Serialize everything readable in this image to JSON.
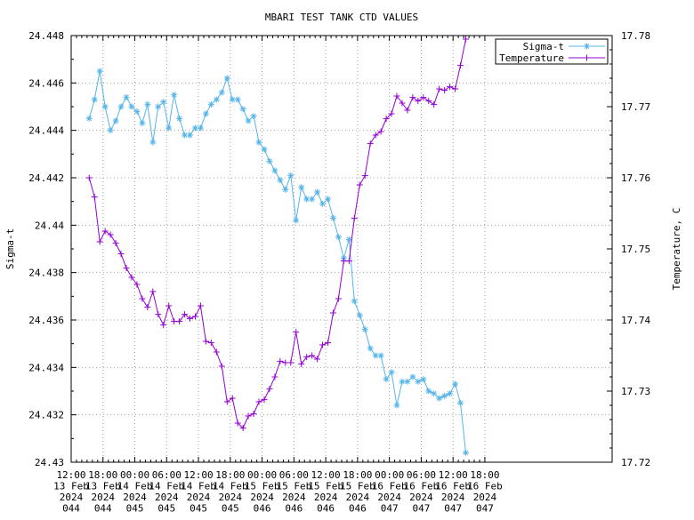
{
  "chart_data": {
    "type": "line",
    "title": "MBARI TEST TANK CTD VALUES",
    "ylabel": "Sigma-t",
    "y2label": "Temperature, C",
    "xlim": [
      0,
      102
    ],
    "ylim": [
      24.43,
      24.448
    ],
    "y2lim": [
      17.72,
      17.78
    ],
    "grid": true,
    "legend_position": "top-right",
    "x_ticks": [
      {
        "x": 0,
        "lines": [
          "12:00",
          "13 Feb",
          "2024",
          "044"
        ]
      },
      {
        "x": 6,
        "lines": [
          "18:00",
          "13 Feb",
          "2024",
          "044"
        ]
      },
      {
        "x": 12,
        "lines": [
          "00:00",
          "14 Feb",
          "2024",
          "045"
        ]
      },
      {
        "x": 18,
        "lines": [
          "06:00",
          "14 Feb",
          "2024",
          "045"
        ]
      },
      {
        "x": 24,
        "lines": [
          "12:00",
          "14 Feb",
          "2024",
          "045"
        ]
      },
      {
        "x": 30,
        "lines": [
          "18:00",
          "14 Feb",
          "2024",
          "045"
        ]
      },
      {
        "x": 36,
        "lines": [
          "00:00",
          "15 Feb",
          "2024",
          "046"
        ]
      },
      {
        "x": 42,
        "lines": [
          "06:00",
          "15 Feb",
          "2024",
          "046"
        ]
      },
      {
        "x": 48,
        "lines": [
          "12:00",
          "15 Feb",
          "2024",
          "046"
        ]
      },
      {
        "x": 54,
        "lines": [
          "18:00",
          "15 Feb",
          "2024",
          "046"
        ]
      },
      {
        "x": 60,
        "lines": [
          "00:00",
          "16 Feb",
          "2024",
          "047"
        ]
      },
      {
        "x": 66,
        "lines": [
          "06:00",
          "16 Feb",
          "2024",
          "047"
        ]
      },
      {
        "x": 72,
        "lines": [
          "12:00",
          "16 Feb",
          "2024",
          "047"
        ]
      },
      {
        "x": 78,
        "lines": [
          "18:00",
          "16 Feb",
          "2024",
          "047"
        ]
      }
    ],
    "y_ticks": [
      "24.43",
      "24.432",
      "24.434",
      "24.436",
      "24.438",
      "24.44",
      "24.442",
      "24.444",
      "24.446",
      "24.448"
    ],
    "y2_ticks": [
      "17.72",
      "17.73",
      "17.74",
      "17.75",
      "17.76",
      "17.77",
      "17.78"
    ],
    "series": [
      {
        "name": "Sigma-t",
        "axis": "left",
        "color": "#56b4e9",
        "marker": "asterisk",
        "points": [
          [
            3.4,
            24.4445
          ],
          [
            4.4,
            24.4453
          ],
          [
            5.4,
            24.4465
          ],
          [
            6.4,
            24.445
          ],
          [
            7.4,
            24.444
          ],
          [
            8.4,
            24.4444
          ],
          [
            9.4,
            24.445
          ],
          [
            10.4,
            24.4454
          ],
          [
            11.4,
            24.445
          ],
          [
            12.4,
            24.4448
          ],
          [
            13.4,
            24.4443
          ],
          [
            14.4,
            24.4451
          ],
          [
            15.4,
            24.4435
          ],
          [
            16.4,
            24.445
          ],
          [
            17.4,
            24.4452
          ],
          [
            18.4,
            24.4441
          ],
          [
            19.4,
            24.4455
          ],
          [
            20.4,
            24.4445
          ],
          [
            21.4,
            24.4438
          ],
          [
            22.4,
            24.4438
          ],
          [
            23.4,
            24.4441
          ],
          [
            24.4,
            24.4441
          ],
          [
            25.4,
            24.4447
          ],
          [
            26.4,
            24.4451
          ],
          [
            27.4,
            24.4453
          ],
          [
            28.4,
            24.4456
          ],
          [
            29.4,
            24.4462
          ],
          [
            30.4,
            24.4453
          ],
          [
            31.4,
            24.4453
          ],
          [
            32.4,
            24.4449
          ],
          [
            33.4,
            24.4444
          ],
          [
            34.4,
            24.4446
          ],
          [
            35.4,
            24.4435
          ],
          [
            36.4,
            24.4432
          ],
          [
            37.4,
            24.4427
          ],
          [
            38.4,
            24.4423
          ],
          [
            39.4,
            24.4419
          ],
          [
            40.4,
            24.4415
          ],
          [
            41.4,
            24.4421
          ],
          [
            42.4,
            24.4402
          ],
          [
            43.4,
            24.4416
          ],
          [
            44.4,
            24.4411
          ],
          [
            45.4,
            24.4411
          ],
          [
            46.4,
            24.4414
          ],
          [
            47.4,
            24.4409
          ],
          [
            48.4,
            24.4411
          ],
          [
            49.4,
            24.4403
          ],
          [
            50.4,
            24.4395
          ],
          [
            51.4,
            24.4386
          ],
          [
            52.4,
            24.4394
          ],
          [
            53.4,
            24.4368
          ],
          [
            54.4,
            24.4362
          ],
          [
            55.4,
            24.4356
          ],
          [
            56.4,
            24.4348
          ],
          [
            57.4,
            24.4345
          ],
          [
            58.4,
            24.4345
          ],
          [
            59.4,
            24.4335
          ],
          [
            60.4,
            24.4338
          ],
          [
            61.4,
            24.4324
          ],
          [
            62.4,
            24.4334
          ],
          [
            63.4,
            24.4334
          ],
          [
            64.4,
            24.4336
          ],
          [
            65.4,
            24.4334
          ],
          [
            66.4,
            24.4335
          ],
          [
            67.4,
            24.433
          ],
          [
            68.4,
            24.4329
          ],
          [
            69.4,
            24.4327
          ],
          [
            70.4,
            24.4328
          ],
          [
            71.4,
            24.4329
          ],
          [
            72.4,
            24.4333
          ],
          [
            73.4,
            24.4325
          ],
          [
            74.4,
            24.4304
          ]
        ]
      },
      {
        "name": "Temperature",
        "axis": "right",
        "color": "#9400d3",
        "marker": "plus",
        "points": [
          [
            3.4,
            17.76
          ],
          [
            4.4,
            17.7573
          ],
          [
            5.4,
            17.751
          ],
          [
            6.4,
            17.7525
          ],
          [
            7.4,
            17.752
          ],
          [
            8.4,
            17.7508
          ],
          [
            9.4,
            17.7493
          ],
          [
            10.4,
            17.7473
          ],
          [
            11.4,
            17.746
          ],
          [
            12.4,
            17.745
          ],
          [
            13.4,
            17.743
          ],
          [
            14.4,
            17.7418
          ],
          [
            15.4,
            17.744
          ],
          [
            16.4,
            17.7408
          ],
          [
            17.4,
            17.7393
          ],
          [
            18.4,
            17.742
          ],
          [
            19.4,
            17.7398
          ],
          [
            20.4,
            17.7398
          ],
          [
            21.4,
            17.7408
          ],
          [
            22.4,
            17.7402
          ],
          [
            23.4,
            17.7405
          ],
          [
            24.4,
            17.742
          ],
          [
            25.4,
            17.737
          ],
          [
            26.4,
            17.7368
          ],
          [
            27.4,
            17.7355
          ],
          [
            28.4,
            17.7335
          ],
          [
            29.4,
            17.7285
          ],
          [
            30.4,
            17.729
          ],
          [
            31.4,
            17.7255
          ],
          [
            32.4,
            17.7248
          ],
          [
            33.4,
            17.7265
          ],
          [
            34.4,
            17.7268
          ],
          [
            35.4,
            17.7285
          ],
          [
            36.4,
            17.7288
          ],
          [
            37.4,
            17.7303
          ],
          [
            38.4,
            17.732
          ],
          [
            39.4,
            17.7342
          ],
          [
            40.4,
            17.734
          ],
          [
            41.4,
            17.734
          ],
          [
            42.4,
            17.7383
          ],
          [
            43.4,
            17.7338
          ],
          [
            44.4,
            17.7348
          ],
          [
            45.4,
            17.735
          ],
          [
            46.4,
            17.7345
          ],
          [
            47.4,
            17.7365
          ],
          [
            48.4,
            17.7368
          ],
          [
            49.4,
            17.741
          ],
          [
            50.4,
            17.743
          ],
          [
            51.4,
            17.7483
          ],
          [
            52.4,
            17.7483
          ],
          [
            53.4,
            17.7543
          ],
          [
            54.4,
            17.759
          ],
          [
            55.4,
            17.7603
          ],
          [
            56.4,
            17.7648
          ],
          [
            57.4,
            17.766
          ],
          [
            58.4,
            17.7665
          ],
          [
            59.4,
            17.7683
          ],
          [
            60.4,
            17.769
          ],
          [
            61.4,
            17.7715
          ],
          [
            62.4,
            17.7705
          ],
          [
            63.4,
            17.7695
          ],
          [
            64.4,
            17.7713
          ],
          [
            65.4,
            17.7708
          ],
          [
            66.4,
            17.7713
          ],
          [
            67.4,
            17.7708
          ],
          [
            68.4,
            17.7703
          ],
          [
            69.4,
            17.7725
          ],
          [
            70.4,
            17.7723
          ],
          [
            71.4,
            17.7728
          ],
          [
            72.4,
            17.7725
          ],
          [
            73.4,
            17.7758
          ],
          [
            74.4,
            17.7795
          ]
        ]
      }
    ]
  }
}
